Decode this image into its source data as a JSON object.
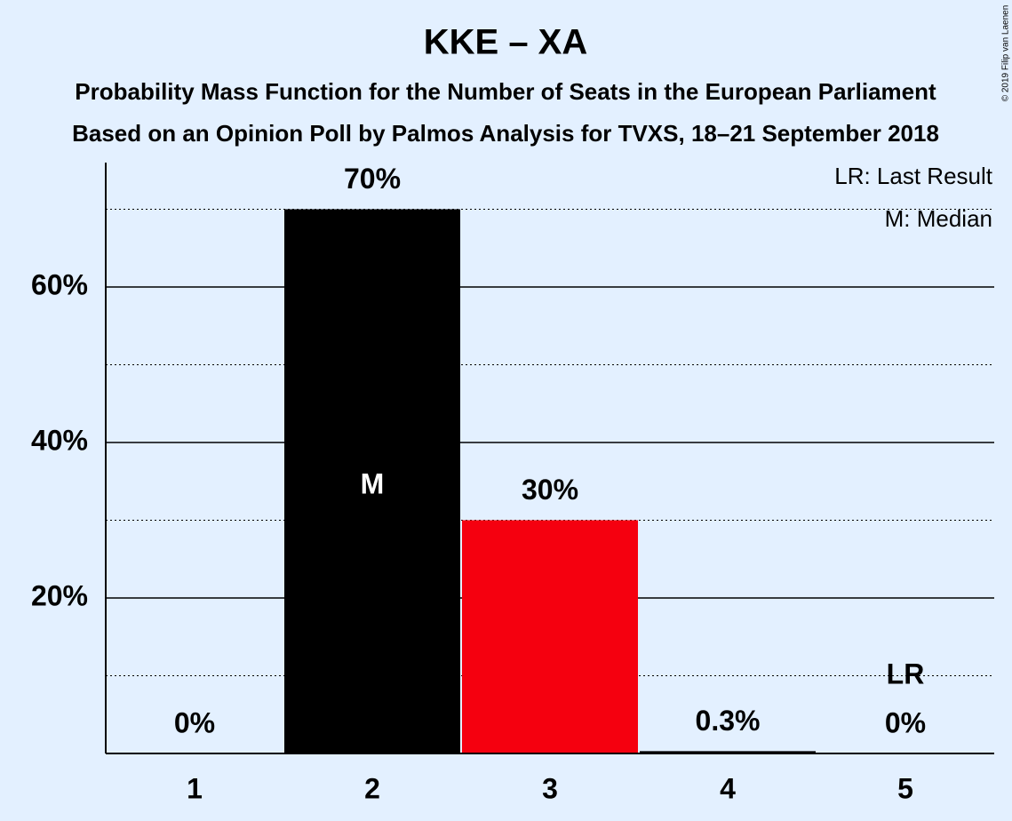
{
  "chart_data": {
    "type": "bar",
    "title": "KKE – XA",
    "subtitle": [
      "Probability Mass Function for the Number of Seats in the European Parliament",
      "Based on an Opinion Poll by Palmos Analysis for TVXS, 18–21 September 2018"
    ],
    "categories": [
      "1",
      "2",
      "3",
      "4",
      "5"
    ],
    "values": [
      0,
      70,
      30,
      0.3,
      0
    ],
    "value_labels": [
      "0%",
      "70%",
      "30%",
      "0.3%",
      "0%"
    ],
    "colors": [
      "#000000",
      "#000000",
      "#f5000f",
      "#000000",
      "#000000"
    ],
    "ylim": [
      0,
      76
    ],
    "yticks": [
      {
        "value": 20,
        "label": "20%"
      },
      {
        "value": 40,
        "label": "40%"
      },
      {
        "value": 60,
        "label": "60%"
      }
    ],
    "minor_yticks": [
      10,
      30,
      50,
      70
    ],
    "grid": true,
    "legend": [
      "LR: Last Result",
      "M: Median"
    ],
    "median_marker": "M",
    "median_category": "2",
    "last_result_marker": "LR",
    "last_result_category": "5",
    "copyright": "© 2019 Filip van Laenen"
  }
}
